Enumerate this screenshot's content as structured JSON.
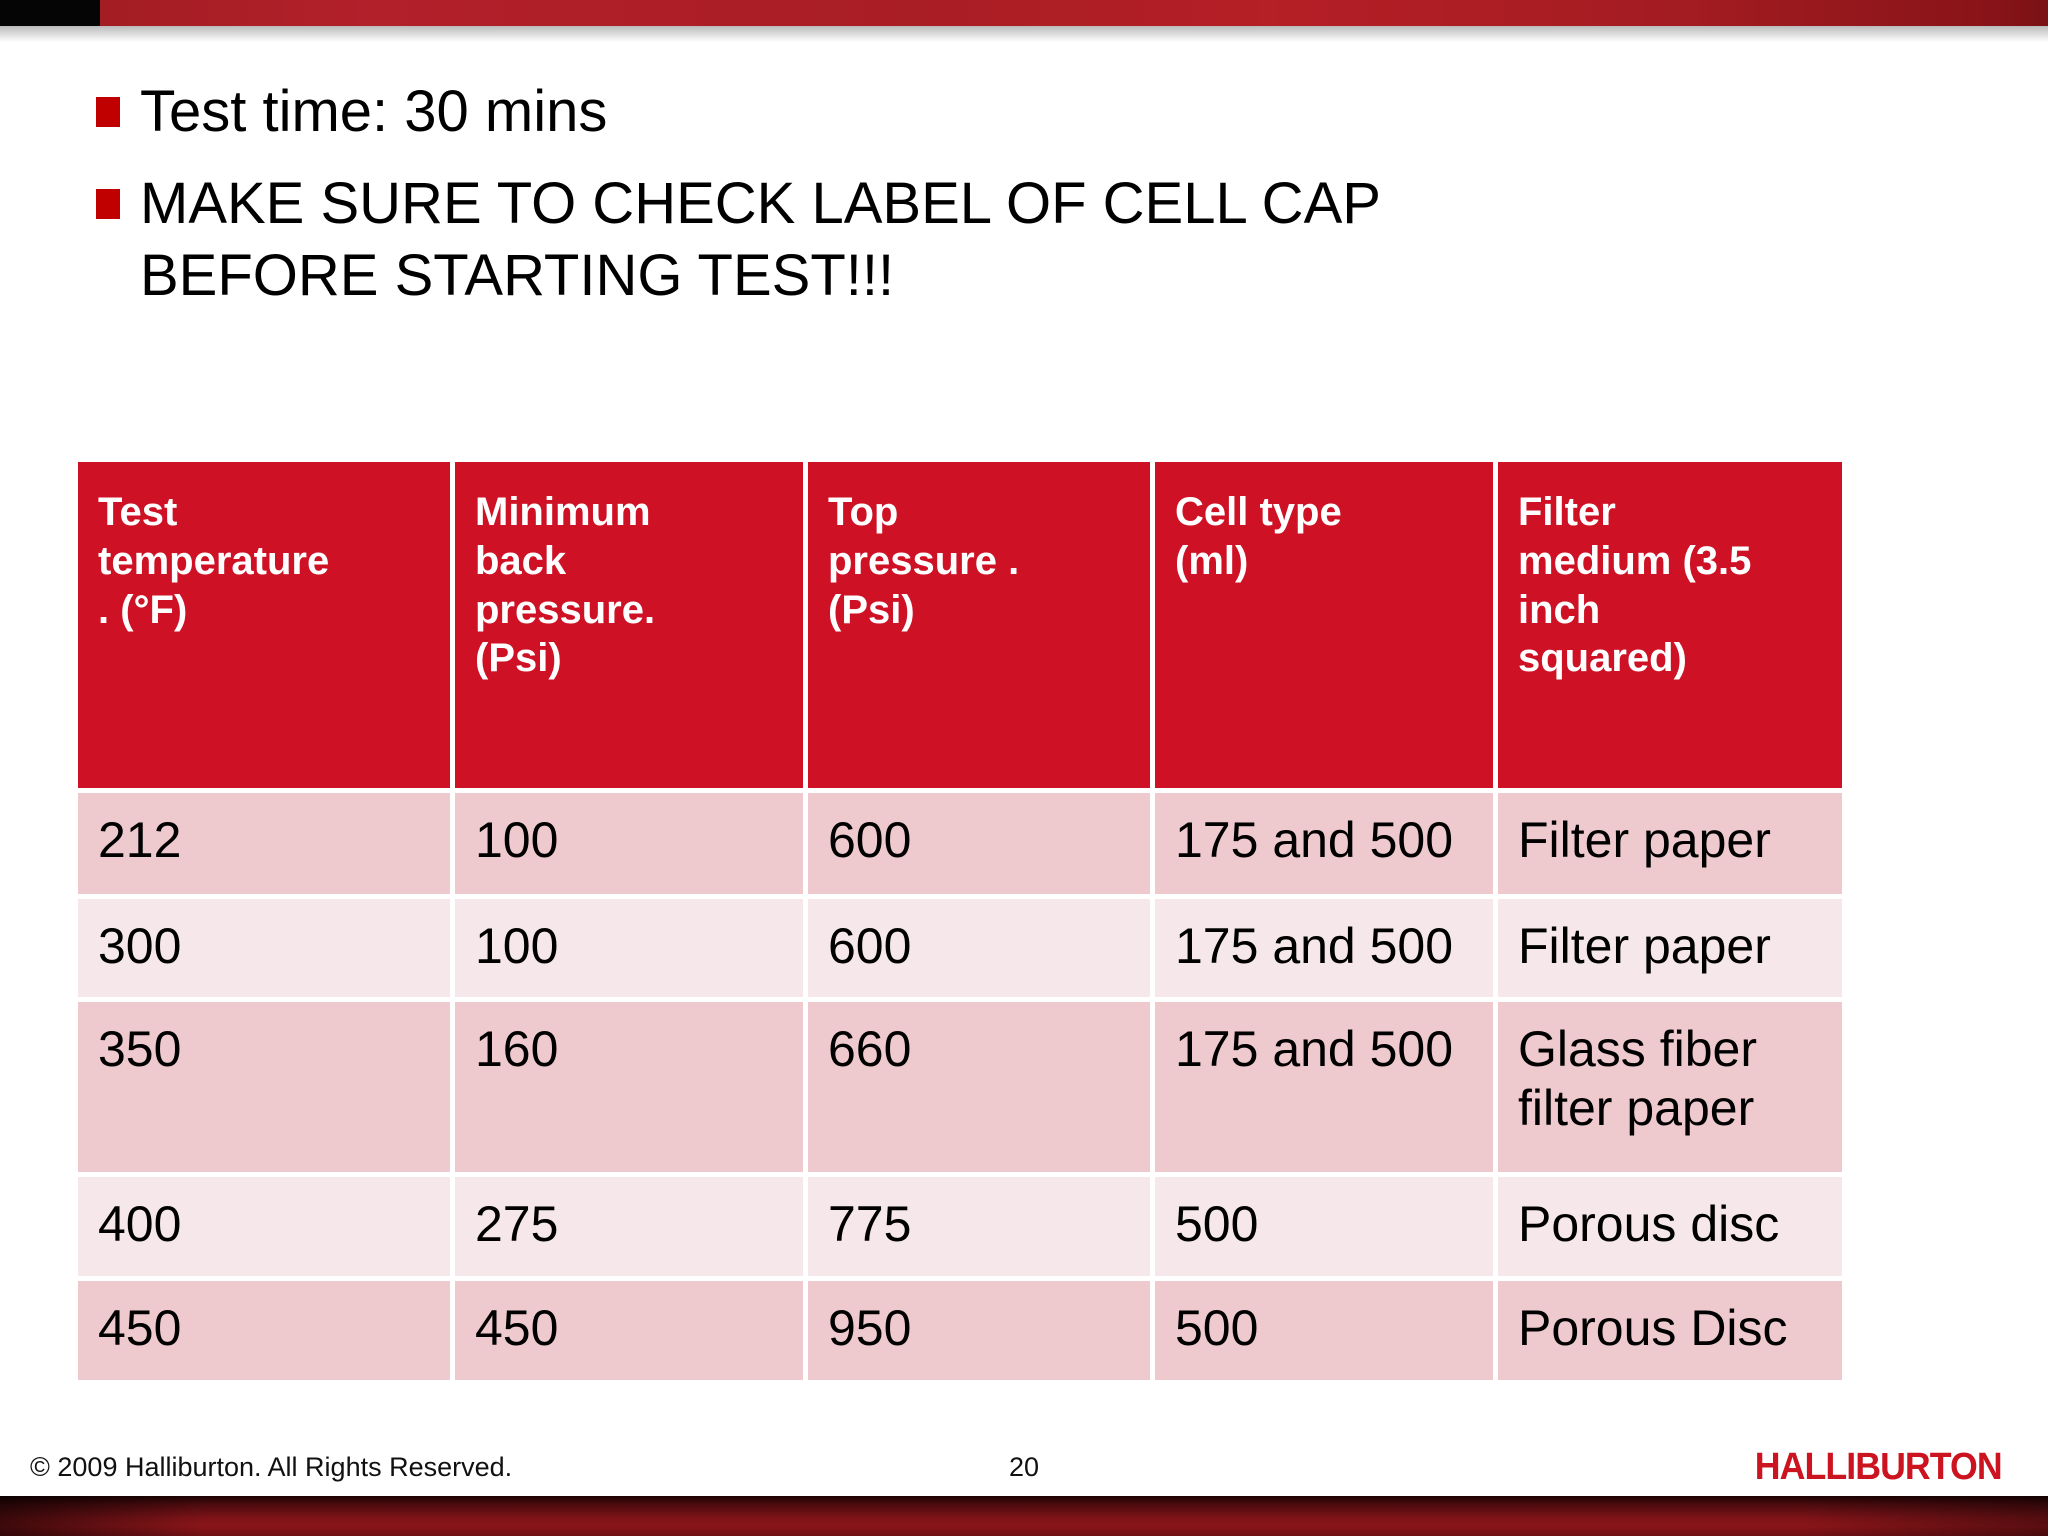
{
  "slide": {
    "bullets": [
      {
        "text": "Test time: 30 mins"
      },
      {
        "text": "MAKE SURE TO CHECK LABEL OF CELL CAP\nBEFORE STARTING TEST!!!"
      }
    ]
  },
  "table": {
    "headers": [
      "Test\ntemperature\n. (°F)",
      "Minimum\nback\npressure.\n(Psi)",
      "Top\npressure .\n(Psi)",
      "Cell type\n(ml)",
      "Filter\nmedium (3.5\ninch\nsquared)"
    ],
    "rows": [
      [
        "212",
        "100",
        "600",
        "175 and 500",
        "Filter paper"
      ],
      [
        "300",
        "100",
        "600",
        "175 and 500",
        "Filter paper"
      ],
      [
        "350",
        "160",
        "660",
        "175 and 500",
        "Glass fiber\nfilter paper"
      ],
      [
        "400",
        "275",
        "775",
        "500",
        "Porous disc"
      ],
      [
        "450",
        "450",
        "950",
        "500",
        "Porous Disc"
      ]
    ]
  },
  "footer": {
    "copyright": "© 2009 Halliburton. All Rights Reserved.",
    "page_number": "20",
    "logo": "HALLIBURTON"
  },
  "colors": {
    "header_red": "#ce1125",
    "row_dark_pink": "#eec9cd",
    "row_light_pink": "#f6e8ea",
    "bullet_red": "#c00000",
    "logo_red": "#cc1420",
    "top_bar_red": "#b2202a",
    "bottom_bar_maroon": "#7e1318"
  }
}
